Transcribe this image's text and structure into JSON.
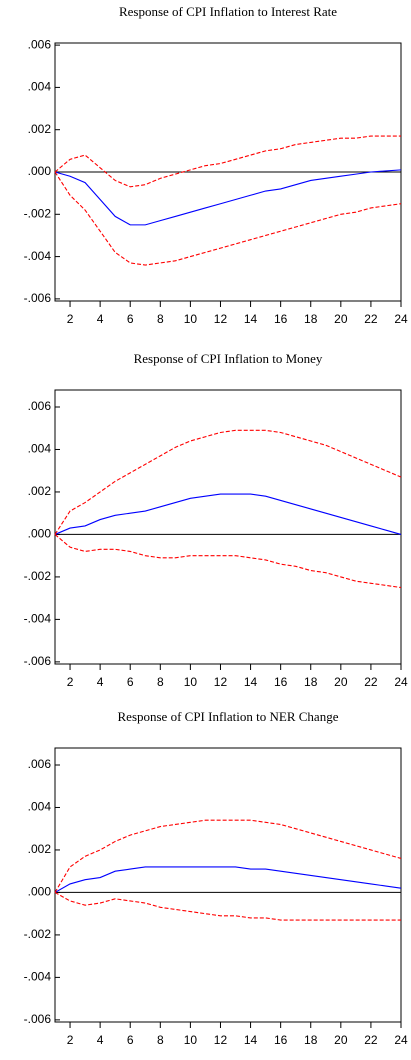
{
  "chart_data": [
    {
      "type": "line",
      "title": "Response of CPI Inflation to Interest Rate",
      "x": [
        1,
        2,
        3,
        4,
        5,
        6,
        7,
        8,
        9,
        10,
        11,
        12,
        13,
        14,
        15,
        16,
        17,
        18,
        19,
        20,
        21,
        22,
        23,
        24
      ],
      "xlim": [
        1,
        24
      ],
      "xticks": [
        2,
        4,
        6,
        8,
        10,
        12,
        14,
        16,
        18,
        20,
        22,
        24
      ],
      "ylim": [
        -0.0061,
        0.0061
      ],
      "yticks": [
        {
          "value": 0.006,
          "label": ".006"
        },
        {
          "value": 0.004,
          "label": ".004"
        },
        {
          "value": 0.002,
          "label": ".002"
        },
        {
          "value": 0,
          "label": ".000"
        },
        {
          "value": -0.002,
          "label": "-.002"
        },
        {
          "value": -0.004,
          "label": "-.004"
        },
        {
          "value": -0.006,
          "label": "-.006"
        }
      ],
      "series": [
        {
          "color": "#0000ff",
          "dashed": false,
          "values": [
            0,
            -0.0002,
            -0.0005,
            -0.0013,
            -0.0021,
            -0.0025,
            -0.0025,
            -0.0023,
            -0.0021,
            -0.0019,
            -0.0017,
            -0.0015,
            -0.0013,
            -0.0011,
            -0.0009,
            -0.0008,
            -0.0006,
            -0.0004,
            -0.0003,
            -0.0002,
            -0.0001,
            0,
            5e-05,
            0.0001
          ]
        },
        {
          "color": "#ff0000",
          "dashed": true,
          "values": [
            0,
            0.0006,
            0.0008,
            0.0002,
            -0.0004,
            -0.0007,
            -0.0006,
            -0.0003,
            -0.0001,
            0.0001,
            0.0003,
            0.0004,
            0.0006,
            0.0008,
            0.001,
            0.0011,
            0.0013,
            0.0014,
            0.0015,
            0.0016,
            0.0016,
            0.0017,
            0.0017,
            0.0017
          ]
        },
        {
          "color": "#ff0000",
          "dashed": true,
          "values": [
            0,
            -0.0011,
            -0.0018,
            -0.0028,
            -0.0038,
            -0.0043,
            -0.0044,
            -0.0043,
            -0.0042,
            -0.004,
            -0.0038,
            -0.0036,
            -0.0034,
            -0.0032,
            -0.003,
            -0.0028,
            -0.0026,
            -0.0024,
            -0.0022,
            -0.002,
            -0.0019,
            -0.0017,
            -0.0016,
            -0.0015
          ]
        }
      ]
    },
    {
      "type": "line",
      "title": "Response of CPI Inflation to Money",
      "x": [
        1,
        2,
        3,
        4,
        5,
        6,
        7,
        8,
        9,
        10,
        11,
        12,
        13,
        14,
        15,
        16,
        17,
        18,
        19,
        20,
        21,
        22,
        23,
        24
      ],
      "xlim": [
        1,
        24
      ],
      "xticks": [
        2,
        4,
        6,
        8,
        10,
        12,
        14,
        16,
        18,
        20,
        22,
        24
      ],
      "ylim": [
        -0.0061,
        0.0068
      ],
      "yticks": [
        {
          "value": 0.006,
          "label": ".006"
        },
        {
          "value": 0.004,
          "label": ".004"
        },
        {
          "value": 0.002,
          "label": ".002"
        },
        {
          "value": 0,
          "label": ".000"
        },
        {
          "value": -0.002,
          "label": "-.002"
        },
        {
          "value": -0.004,
          "label": "-.004"
        },
        {
          "value": -0.006,
          "label": "-.006"
        }
      ],
      "series": [
        {
          "color": "#0000ff",
          "dashed": false,
          "values": [
            0,
            0.0003,
            0.0004,
            0.0007,
            0.0009,
            0.001,
            0.0011,
            0.0013,
            0.0015,
            0.0017,
            0.0018,
            0.0019,
            0.0019,
            0.0019,
            0.0018,
            0.0016,
            0.0014,
            0.0012,
            0.001,
            0.0008,
            0.0006,
            0.0004,
            0.0002,
            0
          ]
        },
        {
          "color": "#ff0000",
          "dashed": true,
          "values": [
            0,
            0.0011,
            0.0015,
            0.002,
            0.0025,
            0.0029,
            0.0033,
            0.0037,
            0.0041,
            0.0044,
            0.0046,
            0.0048,
            0.0049,
            0.0049,
            0.0049,
            0.0048,
            0.0046,
            0.0044,
            0.0042,
            0.0039,
            0.0036,
            0.0033,
            0.003,
            0.0027
          ]
        },
        {
          "color": "#ff0000",
          "dashed": true,
          "values": [
            0,
            -0.0006,
            -0.0008,
            -0.0007,
            -0.0007,
            -0.0008,
            -0.001,
            -0.0011,
            -0.0011,
            -0.001,
            -0.001,
            -0.001,
            -0.001,
            -0.0011,
            -0.0012,
            -0.0014,
            -0.0015,
            -0.0017,
            -0.0018,
            -0.002,
            -0.0022,
            -0.0023,
            -0.0024,
            -0.0025
          ]
        }
      ]
    },
    {
      "type": "line",
      "title": "Response of CPI Inflation to NER Change",
      "x": [
        1,
        2,
        3,
        4,
        5,
        6,
        7,
        8,
        9,
        10,
        11,
        12,
        13,
        14,
        15,
        16,
        17,
        18,
        19,
        20,
        21,
        22,
        23,
        24
      ],
      "xlim": [
        1,
        24
      ],
      "xticks": [
        2,
        4,
        6,
        8,
        10,
        12,
        14,
        16,
        18,
        20,
        22,
        24
      ],
      "ylim": [
        -0.0061,
        0.0068
      ],
      "yticks": [
        {
          "value": 0.006,
          "label": ".006"
        },
        {
          "value": 0.004,
          "label": ".004"
        },
        {
          "value": 0.002,
          "label": ".002"
        },
        {
          "value": 0,
          "label": ".000"
        },
        {
          "value": -0.002,
          "label": "-.002"
        },
        {
          "value": -0.004,
          "label": "-.004"
        },
        {
          "value": -0.006,
          "label": "-.006"
        }
      ],
      "series": [
        {
          "color": "#0000ff",
          "dashed": false,
          "values": [
            0,
            0.0004,
            0.0006,
            0.0007,
            0.001,
            0.0011,
            0.0012,
            0.0012,
            0.0012,
            0.0012,
            0.0012,
            0.0012,
            0.0012,
            0.0011,
            0.0011,
            0.001,
            0.0009,
            0.0008,
            0.0007,
            0.0006,
            0.0005,
            0.0004,
            0.0003,
            0.0002
          ]
        },
        {
          "color": "#ff0000",
          "dashed": true,
          "values": [
            0,
            0.0012,
            0.0017,
            0.002,
            0.0024,
            0.0027,
            0.0029,
            0.0031,
            0.0032,
            0.0033,
            0.0034,
            0.0034,
            0.0034,
            0.0034,
            0.0033,
            0.0032,
            0.003,
            0.0028,
            0.0026,
            0.0024,
            0.0022,
            0.002,
            0.0018,
            0.0016
          ]
        },
        {
          "color": "#ff0000",
          "dashed": true,
          "values": [
            0,
            -0.0004,
            -0.0006,
            -0.0005,
            -0.0003,
            -0.0004,
            -0.0005,
            -0.0007,
            -0.0008,
            -0.0009,
            -0.001,
            -0.0011,
            -0.0011,
            -0.0012,
            -0.0012,
            -0.0013,
            -0.0013,
            -0.0013,
            -0.0013,
            -0.0013,
            -0.0013,
            -0.0013,
            -0.0013,
            -0.0013
          ]
        }
      ]
    }
  ]
}
